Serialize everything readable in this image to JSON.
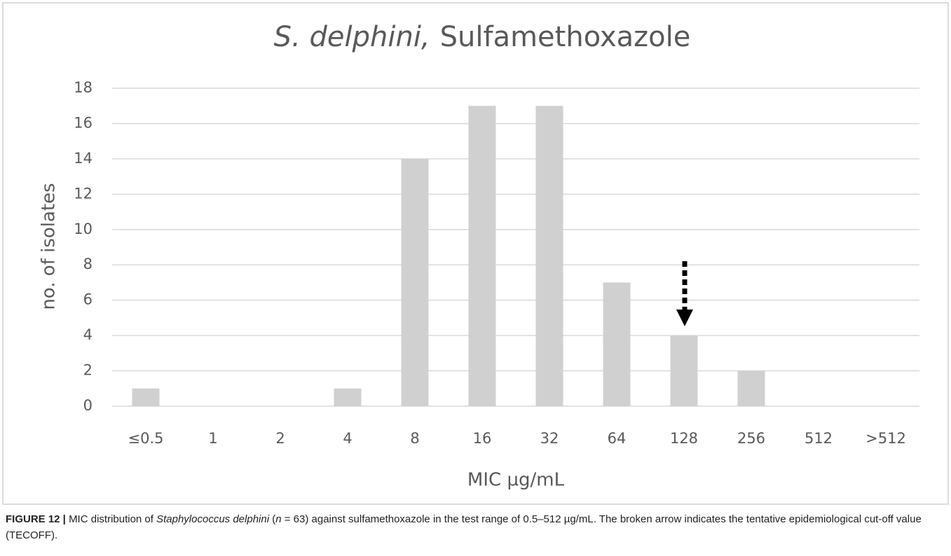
{
  "chart_data": {
    "type": "bar",
    "title": [
      "S. delphini,",
      "Sulfamethoxazole"
    ],
    "x_label": "MIC µg/mL",
    "y_label": "no. of isolates",
    "categories": [
      "≤0.5",
      "1",
      "2",
      "4",
      "8",
      "16",
      "32",
      "64",
      "128",
      "256",
      "512",
      ">512"
    ],
    "values": [
      1,
      0,
      0,
      1,
      14,
      17,
      17,
      7,
      4,
      2,
      0,
      0
    ],
    "color": "#d0d0d0",
    "ylim": [
      0,
      18
    ],
    "yticks": [
      0,
      2,
      4,
      6,
      8,
      10,
      12,
      14,
      16,
      18
    ],
    "grid": true
  },
  "caption": {
    "label": "FIGURE 12 |",
    "parts": [
      "MIC distribution of ",
      "Staphylococcus delphini",
      " (",
      "n",
      " = 63) against sulfamethoxazole in the test range of 0.5–512 µg/mL. The broken arrow indicates the tentative epidemiological cut-off value (TECOFF)."
    ]
  }
}
